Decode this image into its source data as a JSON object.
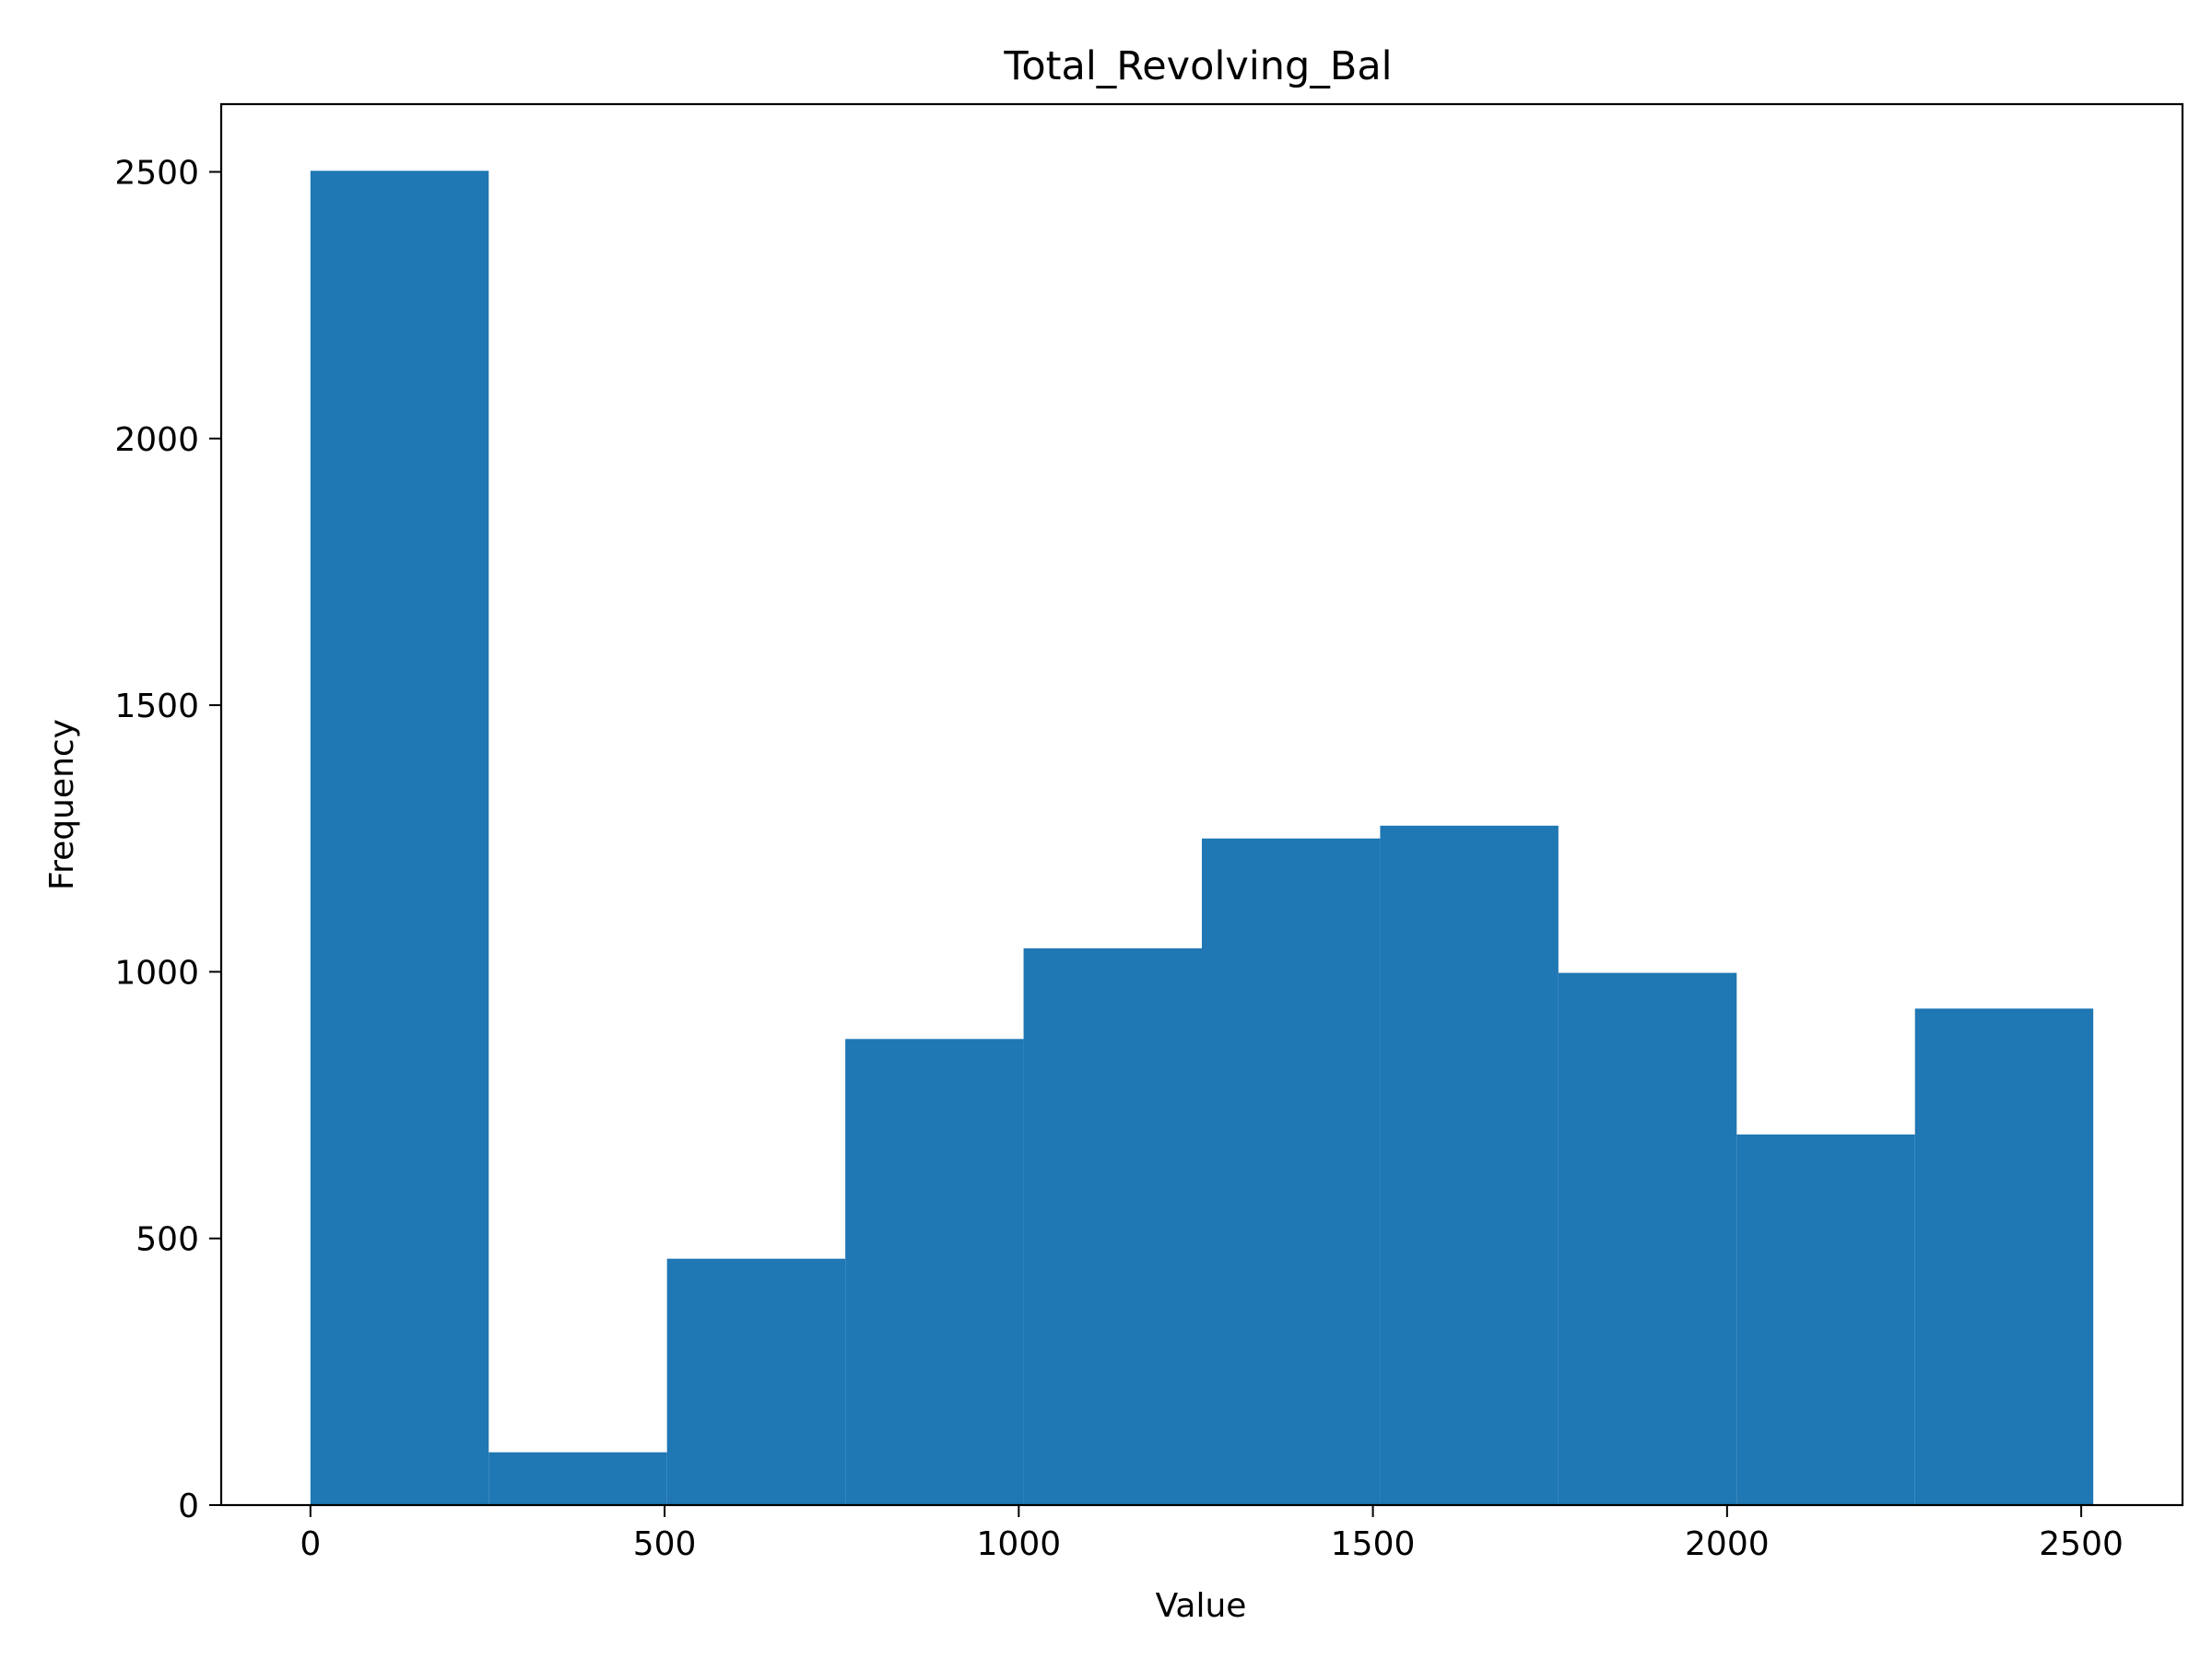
{
  "chart_data": {
    "type": "bar",
    "subtype": "histogram",
    "title": "Total_Revolving_Bal",
    "xlabel": "Value",
    "ylabel": "Frequency",
    "xlim": [
      -126,
      2643
    ],
    "ylim": [
      0,
      2627
    ],
    "grid": false,
    "bar_color": "#1f77b4",
    "bins": [
      {
        "x0": 0,
        "x1": 251.7,
        "count": 2502
      },
      {
        "x0": 251.7,
        "x1": 503.4,
        "count": 99
      },
      {
        "x0": 503.4,
        "x1": 755.1,
        "count": 462
      },
      {
        "x0": 755.1,
        "x1": 1006.8,
        "count": 874
      },
      {
        "x0": 1006.8,
        "x1": 1258.5,
        "count": 1044
      },
      {
        "x0": 1258.5,
        "x1": 1510.2,
        "count": 1250
      },
      {
        "x0": 1510.2,
        "x1": 1761.9,
        "count": 1274
      },
      {
        "x0": 1761.9,
        "x1": 2013.6,
        "count": 998
      },
      {
        "x0": 2013.6,
        "x1": 2265.3,
        "count": 695
      },
      {
        "x0": 2265.3,
        "x1": 2517,
        "count": 931
      }
    ],
    "xticks": [
      {
        "value": 0,
        "label": "0"
      },
      {
        "value": 500,
        "label": "500"
      },
      {
        "value": 1000,
        "label": "1000"
      },
      {
        "value": 1500,
        "label": "1500"
      },
      {
        "value": 2000,
        "label": "2000"
      },
      {
        "value": 2500,
        "label": "2500"
      }
    ],
    "yticks": [
      {
        "value": 0,
        "label": "0"
      },
      {
        "value": 500,
        "label": "500"
      },
      {
        "value": 1000,
        "label": "1000"
      },
      {
        "value": 1500,
        "label": "1500"
      },
      {
        "value": 2000,
        "label": "2000"
      },
      {
        "value": 2500,
        "label": "2500"
      }
    ]
  }
}
